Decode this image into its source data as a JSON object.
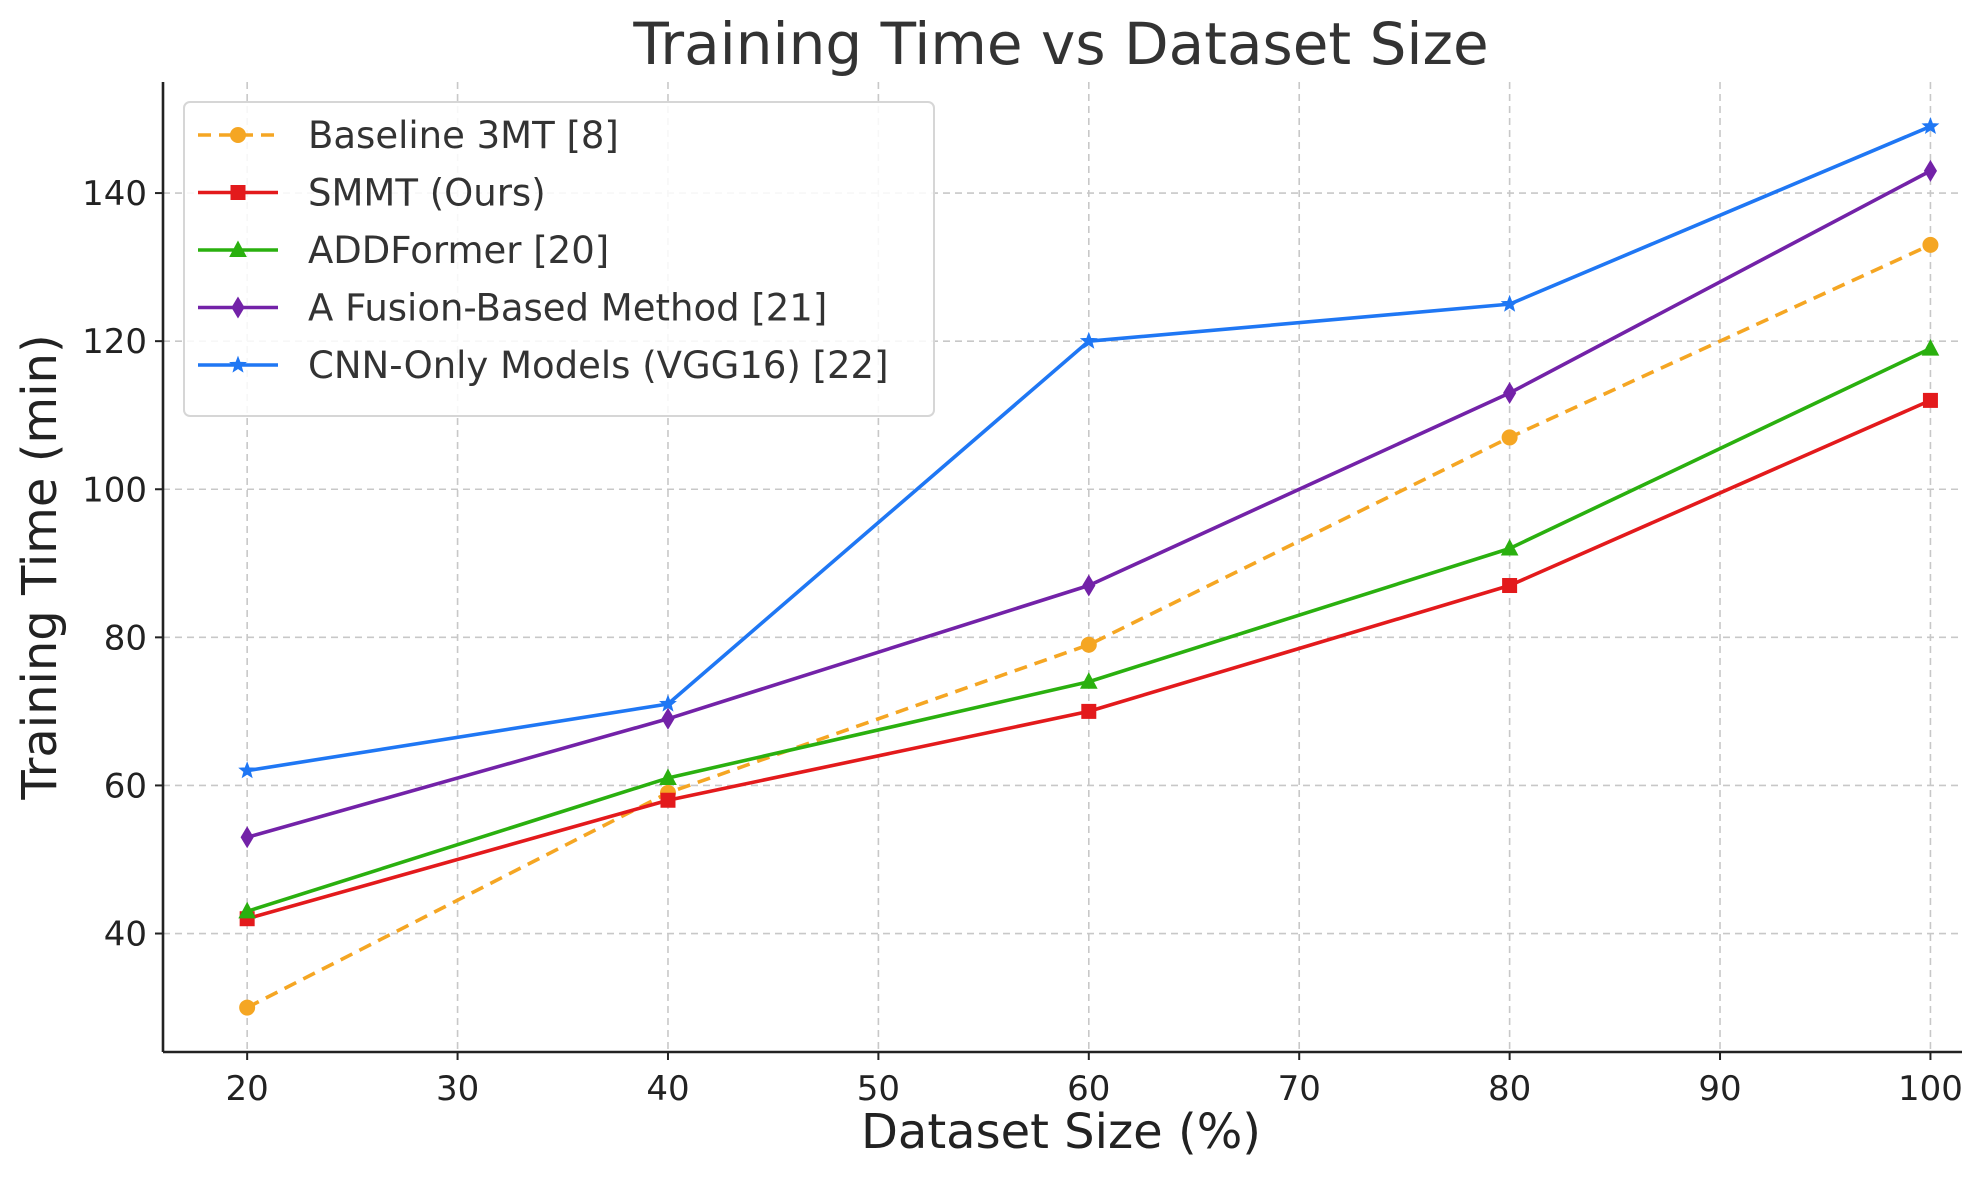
{
  "chart_data": {
    "type": "line",
    "title": "Training Time vs Dataset Size",
    "xlabel": "Dataset Size (%)",
    "ylabel": "Training Time (min)",
    "x": [
      20,
      40,
      60,
      80,
      100
    ],
    "xlim": [
      16,
      101.5
    ],
    "ylim": [
      24,
      155
    ],
    "xticks": [
      20,
      30,
      40,
      50,
      60,
      70,
      80,
      90,
      100
    ],
    "yticks": [
      40,
      60,
      80,
      100,
      120,
      140
    ],
    "grid": true,
    "legend_position": "top-left",
    "series": [
      {
        "name": "Baseline 3MT [8]",
        "values": [
          30,
          59,
          79,
          107,
          133
        ],
        "color": "#f5a623",
        "marker": "circle",
        "dashed": true
      },
      {
        "name": "SMMT (Ours)",
        "values": [
          42,
          58,
          70,
          87,
          112
        ],
        "color": "#e31a1c",
        "marker": "square",
        "dashed": false
      },
      {
        "name": "ADDFormer [20]",
        "values": [
          43,
          61,
          74,
          92,
          119
        ],
        "color": "#2ab00f",
        "marker": "triangle",
        "dashed": false
      },
      {
        "name": "A Fusion-Based Method [21]",
        "values": [
          53,
          69,
          87,
          113,
          143
        ],
        "color": "#7322a8",
        "marker": "diamond",
        "dashed": false
      },
      {
        "name": "CNN-Only Models (VGG16) [22]",
        "values": [
          62,
          71,
          120,
          125,
          149
        ],
        "color": "#1f77f4",
        "marker": "star",
        "dashed": false
      }
    ]
  }
}
